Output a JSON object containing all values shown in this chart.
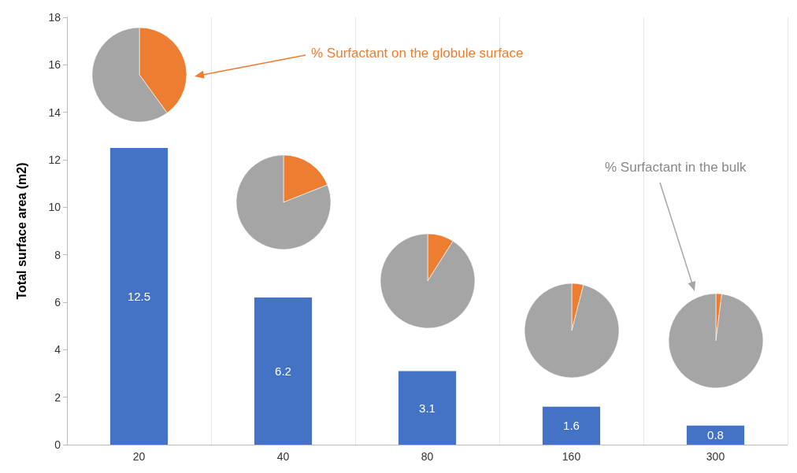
{
  "chart_data": [
    {
      "type": "bar",
      "ylabel": "Total surface area (m2)",
      "categories": [
        "20",
        "40",
        "80",
        "160",
        "300"
      ],
      "values": [
        12.5,
        6.2,
        3.1,
        1.6,
        0.8
      ],
      "color": "#4472c4",
      "ylim": [
        0,
        18
      ],
      "yticks": [
        0,
        2,
        4,
        6,
        8,
        10,
        12,
        14,
        16,
        18
      ],
      "grid": "x",
      "data_labels": true,
      "annotations": [
        "% Surfactant on the globule surface",
        "% Surfactant in the bulk"
      ]
    },
    {
      "type": "pie",
      "categories": [
        null,
        null
      ],
      "values": [
        40,
        60
      ],
      "colors": [
        "#ed7d31",
        "#a5a5a5"
      ]
    },
    {
      "type": "pie",
      "categories": [
        null,
        null
      ],
      "values": [
        19,
        81
      ],
      "colors": [
        "#ed7d31",
        "#a5a5a5"
      ]
    },
    {
      "type": "pie",
      "categories": [
        null,
        null
      ],
      "values": [
        9,
        91
      ],
      "colors": [
        "#ed7d31",
        "#a5a5a5"
      ]
    },
    {
      "type": "pie",
      "categories": [
        null,
        null
      ],
      "values": [
        4,
        96
      ],
      "colors": [
        "#ed7d31",
        "#a5a5a5"
      ]
    },
    {
      "type": "pie",
      "categories": [
        null,
        null
      ],
      "values": [
        2,
        98
      ],
      "colors": [
        "#ed7d31",
        "#a5a5a5"
      ]
    }
  ]
}
